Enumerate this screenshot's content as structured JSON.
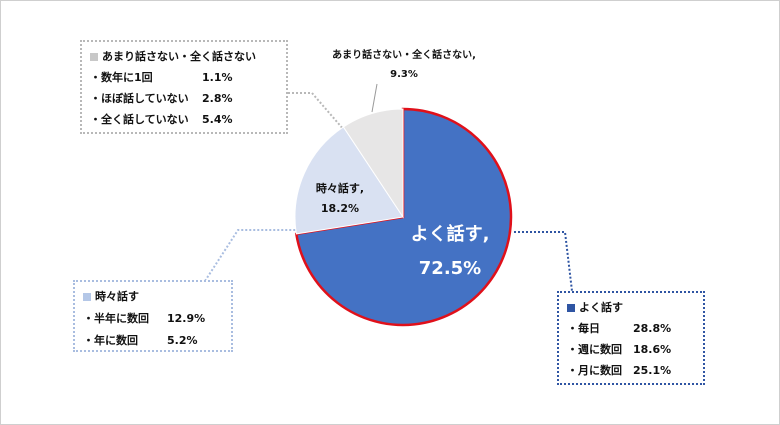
{
  "chart_data": {
    "type": "pie",
    "slices": [
      {
        "label": "よく話す",
        "value": 72.5,
        "color": "#4472C4",
        "label_line1": "よく話す,",
        "label_line2": "72.5%"
      },
      {
        "label": "時々話す",
        "value": 18.2,
        "color": "#D9E1F2",
        "label_line1": "時々話す,",
        "label_line2": "18.2%"
      },
      {
        "label": "あまり話さない・全く話さない",
        "value": 9.3,
        "color": "#E7E6E6",
        "label_line1": "あまり話さない・全く話さない,",
        "label_line2": "9.3%"
      }
    ],
    "highlight_color": "#E0101A",
    "callouts": {
      "rarely": {
        "title": "あまり話さない・全く話さない",
        "color": "#C8C8C8",
        "items": [
          {
            "label": "・数年に1回",
            "value": "1.1%"
          },
          {
            "label": "・ほぼ話していない",
            "value": "2.8%"
          },
          {
            "label": "・全く話していない",
            "value": "5.4%"
          }
        ]
      },
      "sometimes": {
        "title": "時々話す",
        "color": "#B4C7E7",
        "items": [
          {
            "label": "・半年に数回",
            "value": "12.9%"
          },
          {
            "label": "・年に数回",
            "value": "5.2%"
          }
        ]
      },
      "often": {
        "title": "よく話す",
        "color": "#2F55A3",
        "items": [
          {
            "label": "・毎日",
            "value": "28.8%"
          },
          {
            "label": "・週に数回",
            "value": "18.6%"
          },
          {
            "label": "・月に数回",
            "value": "25.1%"
          }
        ]
      }
    }
  }
}
